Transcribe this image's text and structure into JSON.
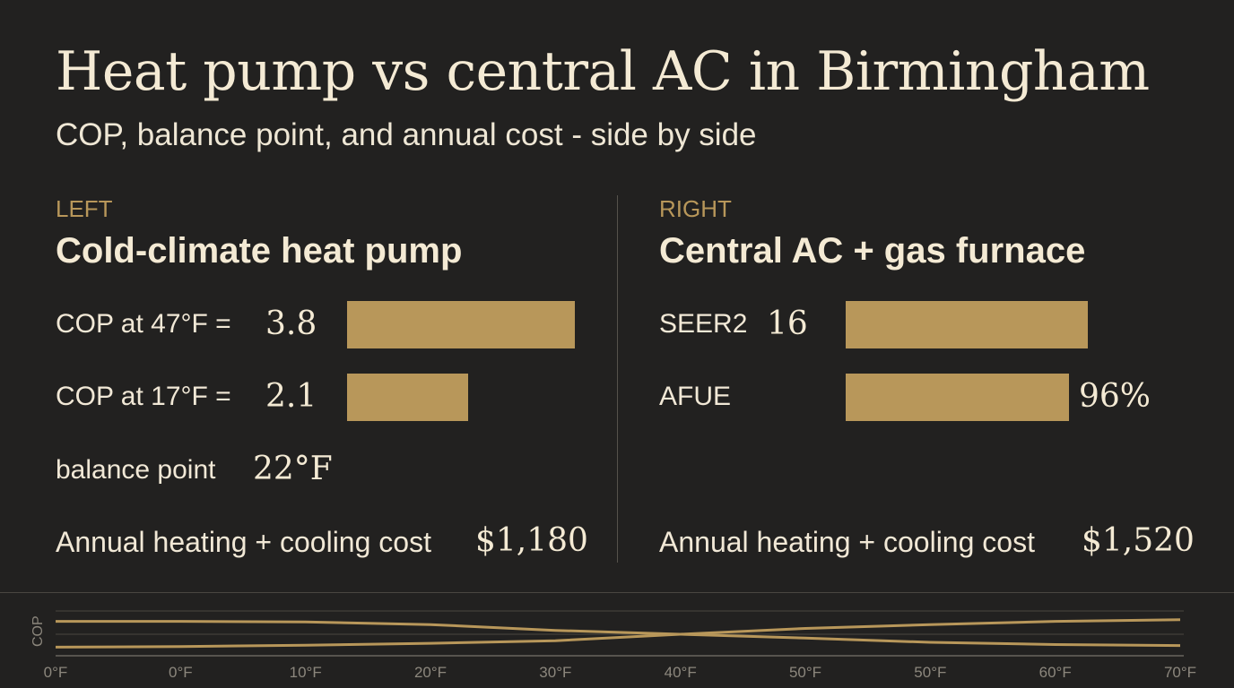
{
  "title": "Heat pump vs central AC in Birmingham",
  "subtitle": "COP, balance point, and annual cost - side by side",
  "left": {
    "tag": "LEFT",
    "heading": "Cold-climate heat pump",
    "cop47": {
      "label": "COP at 47°F =",
      "value": "3.8",
      "number": 3.8
    },
    "cop17": {
      "label": "COP at 17°F  =",
      "value": "2.1",
      "number": 2.1
    },
    "balance": {
      "label": "balance point",
      "value": "22°F"
    },
    "cost": {
      "label": "Annual heating + cooling cost",
      "value": "$1,180"
    }
  },
  "right": {
    "tag": "RIGHT",
    "heading": "Central AC + gas furnace",
    "seer": {
      "label": "SEER2",
      "value": "16",
      "number": 16
    },
    "afue": {
      "label": "AFUE",
      "value": "96%",
      "number": 96
    },
    "cost": {
      "label": "Annual heating + cooling cost",
      "value": "$1,520"
    }
  },
  "chart_data": {
    "type": "line",
    "ylabel": "COP",
    "x_tick_labels": [
      "0°F",
      "0°F",
      "10°F",
      "20°F",
      "30°F",
      "40°F",
      "50°F",
      "50°F",
      "60°F",
      "70°F"
    ],
    "series": [
      {
        "values": [
          0.9,
          0.9,
          0.88,
          0.8,
          0.62,
          0.5,
          0.38,
          0.25,
          0.18,
          0.15
        ]
      },
      {
        "values": [
          0.1,
          0.12,
          0.16,
          0.22,
          0.3,
          0.5,
          0.68,
          0.8,
          0.9,
          0.95
        ]
      }
    ],
    "ylim": [
      0,
      1
    ],
    "grid": true,
    "colors": {
      "line": "#b8975a",
      "grid": "#4a4741",
      "text": "#8c877d"
    }
  }
}
